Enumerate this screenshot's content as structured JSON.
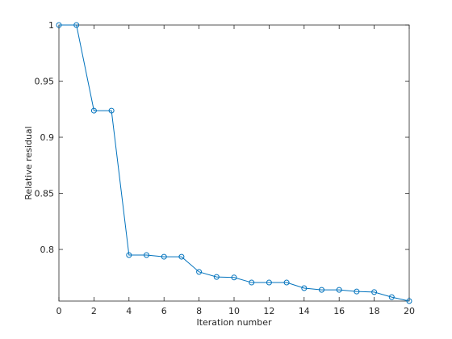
{
  "chart_data": {
    "type": "line",
    "xlabel": "Iteration number",
    "ylabel": "Relative residual",
    "x": [
      0,
      1,
      2,
      3,
      4,
      5,
      6,
      7,
      8,
      9,
      10,
      11,
      12,
      13,
      14,
      15,
      16,
      17,
      18,
      19,
      20
    ],
    "series": [
      {
        "color": "#0072bd",
        "marker": "circle",
        "values": [
          1,
          1,
          0.9237,
          0.9237,
          0.795,
          0.795,
          0.7935,
          0.7935,
          0.78,
          0.7755,
          0.775,
          0.7705,
          0.7705,
          0.7705,
          0.7655,
          0.764,
          0.764,
          0.7625,
          0.762,
          0.7575,
          0.754
        ]
      }
    ],
    "xlim": [
      0,
      20
    ],
    "ylim": [
      0.754,
      1
    ],
    "xticks": [
      0,
      2,
      4,
      6,
      8,
      10,
      12,
      14,
      16,
      18,
      20
    ],
    "yticks": [
      0.8,
      0.85,
      0.9,
      0.95,
      1
    ],
    "grid": false
  }
}
